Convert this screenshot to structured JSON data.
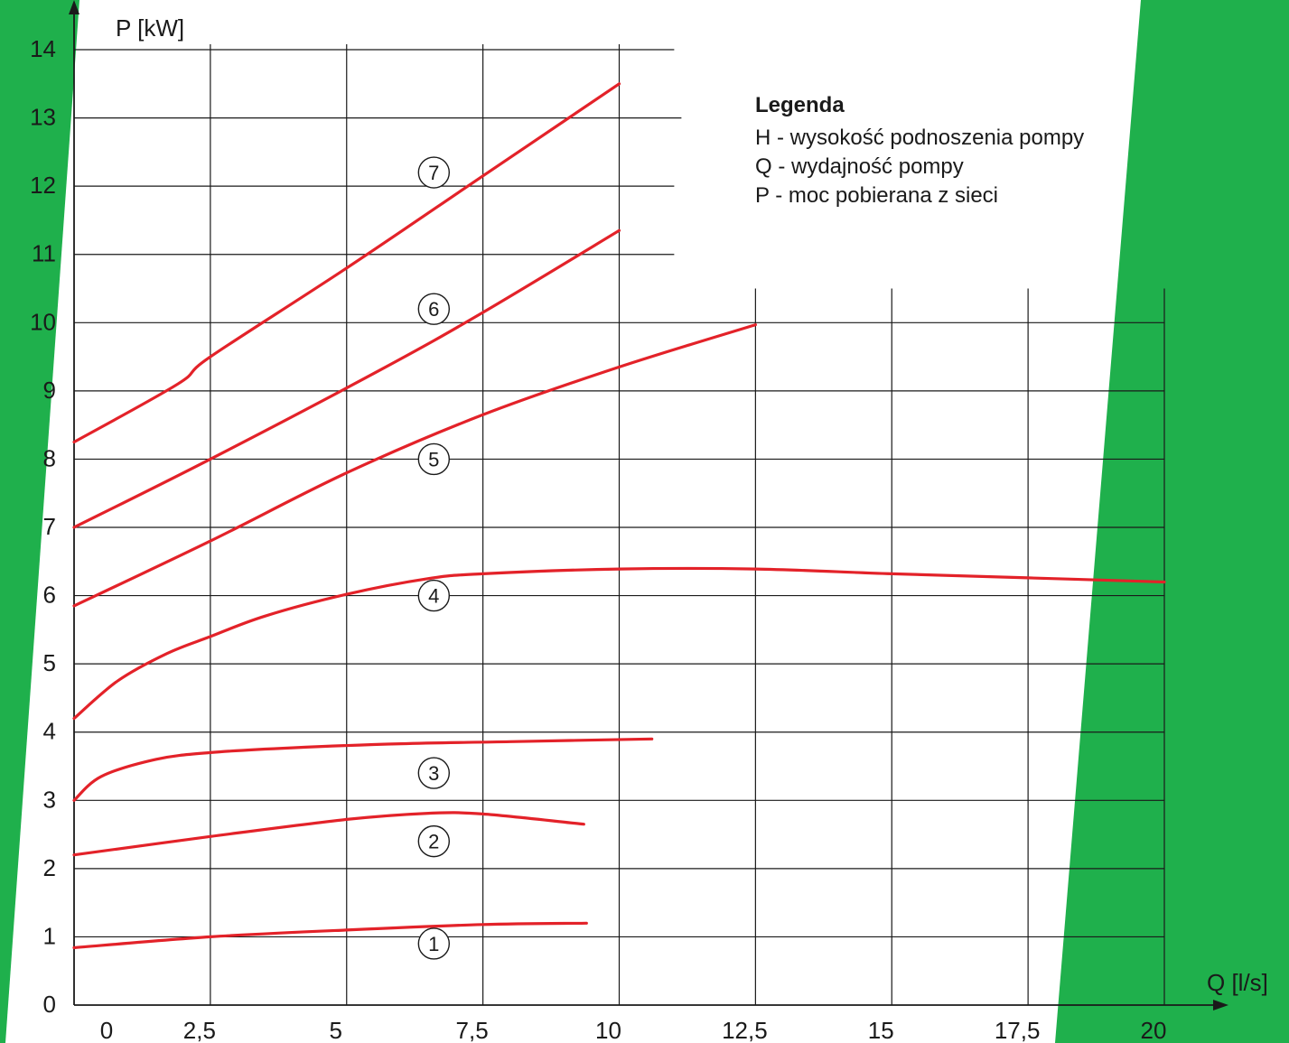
{
  "colors": {
    "background": "#ffffff",
    "decor_green": "#1fb04c",
    "grid": "#1a1a1a",
    "axis": "#1a1a1a",
    "curve": "#e32229",
    "text": "#1a1a1a"
  },
  "chart_data": {
    "type": "line",
    "xlabel": "Q [l/s]",
    "ylabel": "P [kW]",
    "xlim": [
      0,
      20
    ],
    "ylim": [
      0,
      14
    ],
    "x_tick_labels": [
      "0",
      "2,5",
      "5",
      "7,5",
      "10",
      "12,5",
      "15",
      "17,5",
      "20"
    ],
    "y_tick_labels": [
      "0",
      "1",
      "2",
      "3",
      "4",
      "5",
      "6",
      "7",
      "8",
      "9",
      "10",
      "11",
      "12",
      "13",
      "14"
    ],
    "grid": true,
    "legend": {
      "title": "Legenda",
      "position": "top-right",
      "items": [
        "H - wysokość podnoszenia pompy",
        "Q - wydajność pompy",
        "P - moc pobierana z sieci"
      ]
    },
    "series": [
      {
        "label": "1",
        "label_at": [
          6.6,
          0.9
        ],
        "x": [
          0,
          2.5,
          5,
          7.5,
          9.4
        ],
        "y": [
          0.84,
          1.0,
          1.1,
          1.18,
          1.2
        ]
      },
      {
        "label": "2",
        "label_at": [
          6.6,
          2.4
        ],
        "x": [
          0,
          2.5,
          5,
          6.5,
          7.5,
          9.35
        ],
        "y": [
          2.2,
          2.47,
          2.72,
          2.81,
          2.8,
          2.65
        ]
      },
      {
        "label": "3",
        "label_at": [
          6.6,
          3.4
        ],
        "x": [
          0,
          0.5,
          1.5,
          2.5,
          4,
          6,
          8,
          10.6
        ],
        "y": [
          3.0,
          3.35,
          3.6,
          3.7,
          3.77,
          3.83,
          3.86,
          3.9
        ]
      },
      {
        "label": "4",
        "label_at": [
          6.6,
          6.0
        ],
        "x": [
          0,
          0.8,
          1.7,
          2.5,
          3.5,
          5,
          6.5,
          7.5,
          10,
          12.5,
          15,
          17.5,
          20
        ],
        "y": [
          4.2,
          4.75,
          5.15,
          5.4,
          5.7,
          6.02,
          6.25,
          6.32,
          6.39,
          6.39,
          6.32,
          6.26,
          6.2
        ]
      },
      {
        "label": "5",
        "label_at": [
          6.6,
          8.0
        ],
        "x": [
          0,
          2.5,
          5,
          7.5,
          10,
          12.5
        ],
        "y": [
          5.85,
          6.8,
          7.8,
          8.65,
          9.35,
          9.97
        ]
      },
      {
        "label": "6",
        "label_at": [
          6.6,
          10.2
        ],
        "x": [
          0,
          2.5,
          5.6,
          7.5,
          10
        ],
        "y": [
          7.0,
          8.0,
          9.3,
          10.15,
          11.35
        ]
      },
      {
        "label": "7",
        "label_at": [
          6.6,
          12.2
        ],
        "x": [
          0,
          1.9,
          2.5,
          5,
          7.5,
          10
        ],
        "y": [
          8.25,
          9.1,
          9.5,
          10.8,
          12.15,
          13.5
        ]
      }
    ]
  }
}
